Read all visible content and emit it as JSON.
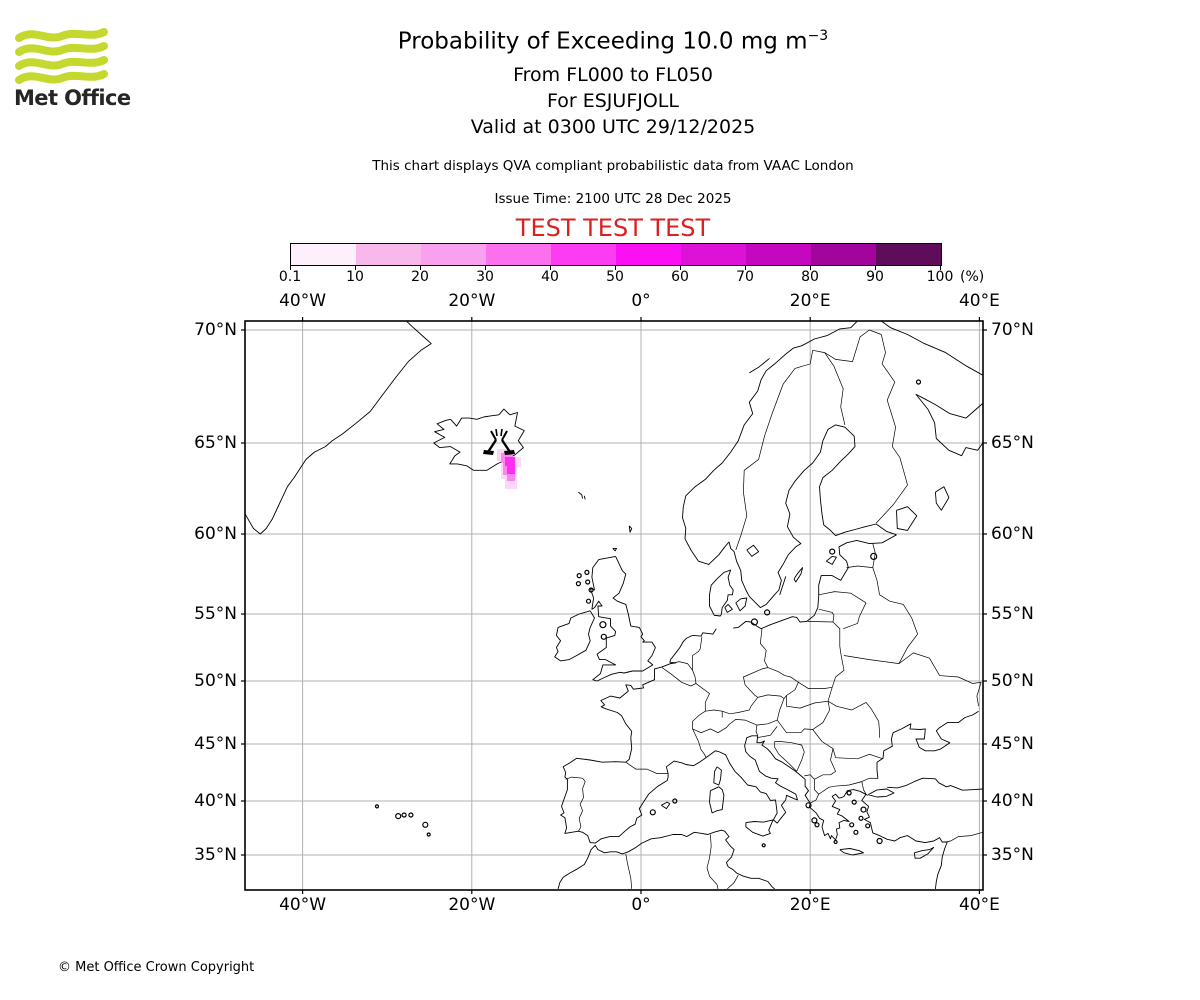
{
  "logo": {
    "brand": "Met Office",
    "wave_color": "#c4d82e"
  },
  "header": {
    "title": "Probability of Exceeding 10.0 mg m",
    "title_sup": "−3",
    "subtitle_fl": "From FL000 to FL050",
    "subtitle_volcano": "For ESJUFJOLL",
    "subtitle_valid": "Valid at 0300 UTC 29/12/2025",
    "description": "This chart displays QVA compliant probabilistic data from VAAC London",
    "issue_time": "Issue Time: 2100 UTC 28 Dec 2025",
    "test_banner": "TEST TEST TEST",
    "test_color": "#dc2020"
  },
  "colorbar": {
    "tick_labels": [
      "0.1",
      "10",
      "20",
      "30",
      "40",
      "50",
      "60",
      "70",
      "80",
      "90",
      "100"
    ],
    "unit": "(%)",
    "colors": [
      "#fdeffb",
      "#f9b8ec",
      "#f9a0ef",
      "#fb71ed",
      "#fc3cf0",
      "#fb10f4",
      "#dc12d8",
      "#c408bf",
      "#a2059b",
      "#5f0c5a"
    ]
  },
  "map": {
    "lon_labels": [
      "40°W",
      "20°W",
      "0°",
      "20°E",
      "40°E"
    ],
    "lat_labels": [
      "70°N",
      "65°N",
      "60°N",
      "55°N",
      "50°N",
      "45°N",
      "40°N",
      "35°N"
    ],
    "grid_color": "#b0b0b0",
    "volcano_name": "ESJUFJOLL"
  },
  "chart_data": {
    "type": "heatmap",
    "title": "Probability of Exceeding 10.0 mg m−3",
    "subtitle": [
      "From FL000 to FL050",
      "For ESJUFJOLL",
      "Valid at 0300 UTC 29/12/2025"
    ],
    "colorbar_levels": [
      0.1,
      10,
      20,
      30,
      40,
      50,
      60,
      70,
      80,
      90,
      100
    ],
    "colorbar_unit": "%",
    "map_extent": {
      "lon_min": -46.8,
      "lon_max": 40.5,
      "lat_min": 31.8,
      "lat_max": 70.5
    },
    "lon_ticks_deg": [
      -40,
      -20,
      0,
      20,
      40
    ],
    "lat_ticks_deg": [
      70,
      65,
      60,
      55,
      50,
      45,
      40,
      35
    ],
    "volcano": {
      "name": "ESJUFJOLL",
      "lon": -16.65,
      "lat": 64.27
    },
    "cells": [
      {
        "lon": -16.6,
        "lat": 64.2,
        "probability_pct": 20
      },
      {
        "lon": -16.2,
        "lat": 64.1,
        "probability_pct": 40
      },
      {
        "lon": -15.9,
        "lat": 63.9,
        "probability_pct": 50
      },
      {
        "lon": -16.3,
        "lat": 63.8,
        "probability_pct": 30
      },
      {
        "lon": -15.9,
        "lat": 63.6,
        "probability_pct": 20
      },
      {
        "lon": -16.5,
        "lat": 63.9,
        "probability_pct": 10
      },
      {
        "lon": -15.6,
        "lat": 63.7,
        "probability_pct": 10
      },
      {
        "lon": -15.8,
        "lat": 63.4,
        "probability_pct": 5
      }
    ]
  },
  "footer": {
    "copyright": "© Met Office Crown Copyright"
  }
}
